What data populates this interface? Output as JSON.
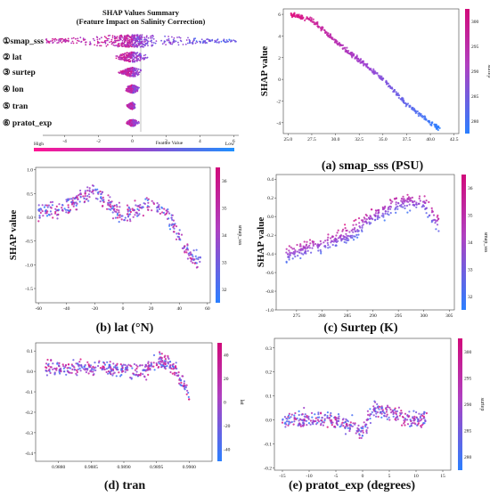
{
  "summary": {
    "title": "SHAP Values Summary",
    "subtitle": "(Feature Impact on Salinity Correction)",
    "features": [
      "①smap_sss",
      "② lat",
      "③ surtep",
      "④ lon",
      "⑤ tran",
      "⑥ pratot_exp"
    ],
    "x_ticks": [
      "-4",
      "-2",
      "0",
      "2",
      "4",
      "6"
    ],
    "xlim": [
      -5.3,
      6.3
    ],
    "xlabel": "Feature Value",
    "colorbar_high": "High",
    "colorbar_low": "Low",
    "spread": [
      {
        "min": -5.2,
        "max": 6.2,
        "width": 1.0
      },
      {
        "min": -1.3,
        "max": 0.9,
        "width": 0.8
      },
      {
        "min": -1.0,
        "max": 0.5,
        "width": 0.7
      },
      {
        "min": -0.5,
        "max": 0.5,
        "width": 0.6
      },
      {
        "min": -0.45,
        "max": 0.15,
        "width": 0.5
      },
      {
        "min": -0.4,
        "max": 0.4,
        "width": 0.5
      }
    ]
  },
  "panels": [
    {
      "id": "a",
      "caption": "(a) smap_sss (PSU)",
      "ylabel": "SHAP value",
      "cbar_label": "surtep",
      "x_ticks": [
        "25.0",
        "27.5",
        "30.0",
        "32.5",
        "35.0",
        "37.5",
        "40.0",
        "42.5"
      ],
      "y_ticks": [
        "6",
        "4",
        "2",
        "0",
        "-2",
        "-4"
      ],
      "cbar_ticks": [
        "300",
        "295",
        "290",
        "285",
        "280"
      ]
    },
    {
      "id": "b",
      "caption": "(b) lat (°N)",
      "ylabel": "SHAP value",
      "cbar_label": "smap_sss",
      "x_ticks": [
        "-60",
        "-40",
        "-20",
        "0",
        "20",
        "40",
        "60"
      ],
      "y_ticks": [
        "1.0",
        "0.5",
        "0.0",
        "-0.5",
        "-1.0",
        "-1.5"
      ],
      "cbar_ticks": [
        "36",
        "35",
        "34",
        "33",
        "32"
      ]
    },
    {
      "id": "c",
      "caption": "(c) Surtep (K)",
      "ylabel": "SHAP value",
      "cbar_label": "smap_sss",
      "x_ticks": [
        "275",
        "280",
        "285",
        "290",
        "295",
        "300",
        "305"
      ],
      "y_ticks": [
        "0.4",
        "0.2",
        "0.0",
        "-0.2",
        "-0.4",
        "-0.6",
        "-0.8",
        "-1.0"
      ],
      "cbar_ticks": [
        "36",
        "35",
        "34",
        "33",
        "32"
      ]
    },
    {
      "id": "d",
      "caption": "(d) tran",
      "ylabel": "",
      "cbar_label": "lat",
      "x_ticks": [
        "0.9880",
        "0.9885",
        "0.9890",
        "0.9895",
        "0.9900"
      ],
      "y_ticks": [
        "0.1",
        "0.0",
        "-0.1",
        "-0.2",
        "-0.3",
        "-0.4"
      ],
      "cbar_ticks": [
        "40",
        "20",
        "0",
        "-20",
        "-40"
      ]
    },
    {
      "id": "e",
      "caption": "(e) pratot_exp (degrees)",
      "ylabel": "",
      "cbar_label": "surtep",
      "x_ticks": [
        "-15",
        "-10",
        "-5",
        "0",
        "5",
        "10",
        "15"
      ],
      "y_ticks": [
        "0.3",
        "0.2",
        "0.1",
        "0.0",
        "-0.1",
        "-0.2"
      ],
      "cbar_ticks": [
        "300",
        "295",
        "290",
        "285",
        "280"
      ]
    }
  ],
  "chart_data": [
    {
      "type": "scatter",
      "name": "summary",
      "title": "SHAP Values Summary",
      "categories": [
        "①smap_sss",
        "② lat",
        "③ surtep",
        "④ lon",
        "⑤ tran",
        "⑥ pratot_exp"
      ],
      "xlim": [
        -5.3,
        6.3
      ]
    },
    {
      "type": "scatter",
      "title": "(a) smap_sss (PSU)",
      "xlim": [
        24.5,
        43
      ],
      "ylim": [
        -5,
        6.5
      ],
      "x": [
        25.3,
        27.5,
        30.0,
        32.5,
        35.0,
        37.5,
        40.0,
        41.0
      ],
      "y": [
        6.0,
        5.5,
        3.5,
        1.8,
        0.0,
        -2.3,
        -4.0,
        -4.6
      ]
    },
    {
      "type": "scatter",
      "title": "(b) lat (°N)",
      "xlim": [
        -62,
        62
      ],
      "ylim": [
        -1.8,
        1.05
      ],
      "x": [
        -60,
        -40,
        -20,
        0,
        20,
        30,
        40,
        50,
        55
      ],
      "y": [
        0.1,
        0.2,
        0.6,
        0.0,
        0.3,
        0.1,
        -0.4,
        -0.9,
        -0.9
      ]
    },
    {
      "type": "scatter",
      "title": "(c) Surtep (K)",
      "xlim": [
        271,
        306
      ],
      "ylim": [
        -1.0,
        0.45
      ],
      "x": [
        273,
        280,
        285,
        290,
        295,
        300,
        303
      ],
      "y": [
        -0.4,
        -0.3,
        -0.2,
        0.0,
        0.15,
        0.15,
        -0.1
      ]
    },
    {
      "type": "scatter",
      "title": "(d) tran",
      "xlim": [
        0.98765,
        0.99035
      ],
      "ylim": [
        -0.44,
        0.14
      ],
      "x": [
        0.9878,
        0.9885,
        0.989,
        0.9893,
        0.9895,
        0.9897,
        0.9899,
        0.99
      ],
      "y": [
        0.02,
        0.02,
        0.01,
        0.0,
        0.05,
        0.04,
        -0.05,
        -0.12
      ]
    },
    {
      "type": "scatter",
      "title": "(e) pratot_exp (degrees)",
      "xlim": [
        -16.5,
        16.5
      ],
      "ylim": [
        -0.21,
        0.34
      ],
      "x": [
        -15,
        -10,
        -5,
        0,
        2,
        5,
        10,
        12
      ],
      "y": [
        0.0,
        0.0,
        0.0,
        -0.05,
        0.05,
        0.03,
        0.0,
        0.01
      ]
    }
  ]
}
